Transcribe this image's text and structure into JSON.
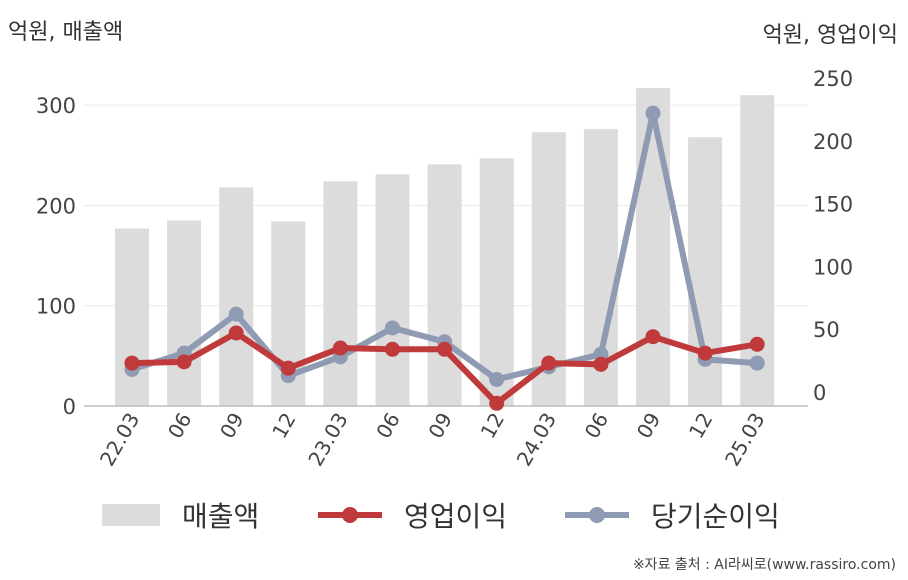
{
  "chart_data": {
    "type": "bar+line",
    "categories": [
      "22.03",
      "06",
      "09",
      "12",
      "23.03",
      "06",
      "09",
      "12",
      "24.03",
      "06",
      "09",
      "12",
      "25.03"
    ],
    "left_axis": {
      "label": "억원, 매출액",
      "ticks": [
        0,
        100,
        200,
        300
      ],
      "ylim": [
        0,
        365
      ]
    },
    "right_axis": {
      "label": "억원, 영업이익",
      "ticks": [
        0,
        50,
        100,
        150,
        200,
        250
      ],
      "ylim": [
        -12,
        256
      ]
    },
    "series": [
      {
        "name": "매출액",
        "kind": "bar",
        "axis": "left",
        "color": "#dcdcdc",
        "values": [
          177,
          185,
          218,
          184,
          224,
          231,
          241,
          247,
          273,
          276,
          317,
          268,
          310
        ]
      },
      {
        "name": "영업이익",
        "kind": "line",
        "axis": "right",
        "color": "#c0393b",
        "values": [
          23,
          24,
          47,
          19,
          35,
          34,
          34,
          -9,
          23,
          22,
          44,
          31,
          38
        ]
      },
      {
        "name": "당기순이익",
        "kind": "line",
        "axis": "right",
        "color": "#8f9bb3",
        "values": [
          18,
          31,
          62,
          13,
          28,
          51,
          40,
          10,
          20,
          30,
          222,
          26,
          23
        ]
      }
    ],
    "grid": true,
    "legend_position": "bottom"
  },
  "source": "※자료 출처 : AI라씨로(www.rassiro.com)"
}
